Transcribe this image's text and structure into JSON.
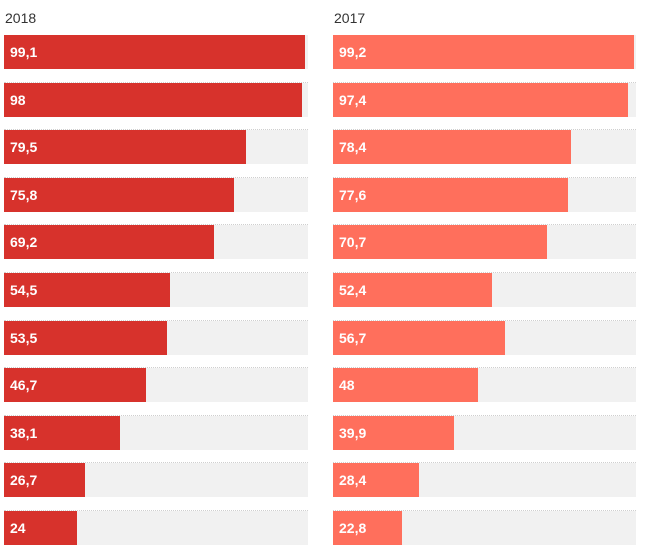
{
  "chart_data": {
    "type": "bar",
    "orientation": "horizontal",
    "value_max": 100,
    "grid": false,
    "legend": "none",
    "series": [
      {
        "name": "2018",
        "color": "#d7322c",
        "values": [
          99.1,
          98,
          79.5,
          75.8,
          69.2,
          54.5,
          53.5,
          46.7,
          38.1,
          26.7,
          24
        ],
        "labels": [
          "99,1",
          "98",
          "79,5",
          "75,8",
          "69,2",
          "54,5",
          "53,5",
          "46,7",
          "38,1",
          "26,7",
          "24"
        ]
      },
      {
        "name": "2017",
        "color": "#ff6f5c",
        "values": [
          99.2,
          97.4,
          78.4,
          77.6,
          70.7,
          52.4,
          56.7,
          48,
          39.9,
          28.4,
          22.8
        ],
        "labels": [
          "99,2",
          "97,4",
          "78,4",
          "77,6",
          "70,7",
          "52,4",
          "56,7",
          "48",
          "39,9",
          "28,4",
          "22,8"
        ]
      }
    ]
  }
}
